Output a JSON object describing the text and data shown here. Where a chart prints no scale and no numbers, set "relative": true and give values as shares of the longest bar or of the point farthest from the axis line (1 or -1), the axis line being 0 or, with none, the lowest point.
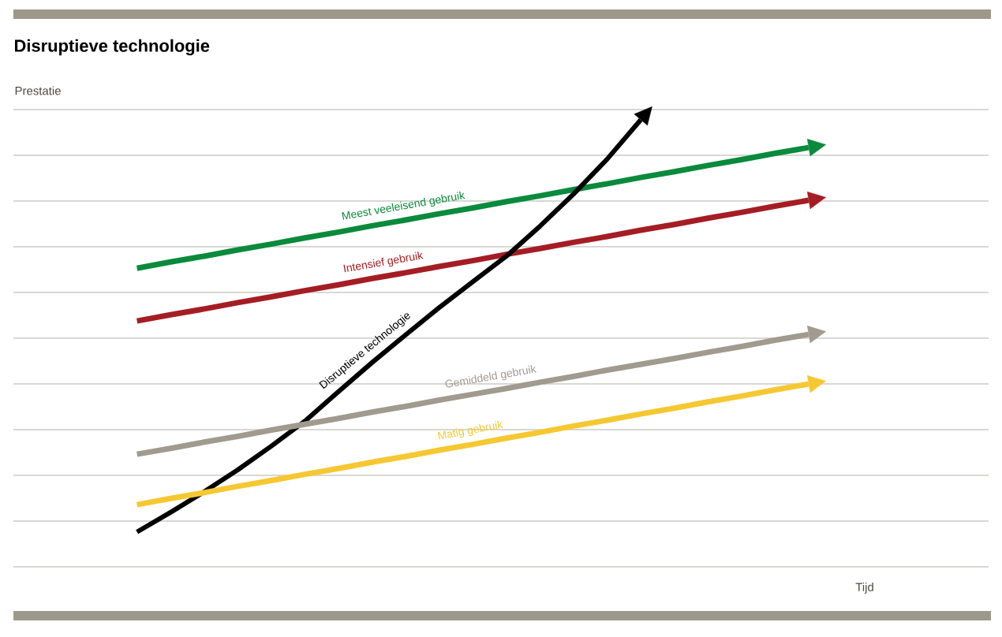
{
  "chart_data": {
    "type": "line",
    "title": "Disruptieve technologie",
    "xlabel": "Tijd",
    "annotations": [
      "Prestatie"
    ],
    "relative": true,
    "grid": "y",
    "line_style": "solid",
    "categories": [
      null,
      null,
      null,
      null,
      null,
      null,
      null,
      null,
      null,
      null,
      null,
      null,
      null,
      null,
      null,
      null,
      null,
      null,
      null,
      null,
      null
    ],
    "series": [
      {
        "name": "Meest veeleisend gebruik",
        "color": "#0a8a3c",
        "values": [
          0.668,
          0.682,
          0.695,
          0.709,
          0.722,
          0.736,
          0.749,
          0.763,
          0.776,
          0.79,
          0.803,
          0.817,
          0.83,
          0.844,
          0.857,
          0.871,
          0.884,
          0.898,
          0.911,
          0.925,
          0.938
        ]
      },
      {
        "name": "Intensief gebruik",
        "color": "#a51d24",
        "values": [
          0.55,
          0.564,
          0.577,
          0.591,
          0.604,
          0.618,
          0.631,
          0.645,
          0.658,
          0.672,
          0.685,
          0.699,
          0.712,
          0.726,
          0.739,
          0.753,
          0.766,
          0.78,
          0.793,
          0.807,
          0.82
        ]
      },
      {
        "name": "Disruptieve technologie",
        "color": "#000000",
        "values": [
          0.078,
          0.122,
          0.168,
          0.217,
          0.27,
          0.326,
          0.392,
          0.457,
          0.519,
          0.58,
          0.638,
          0.695,
          0.762,
          0.834,
          0.912,
          1.0,
          null,
          null,
          null,
          null,
          null
        ]
      },
      {
        "name": "Gemiddeld gebruik",
        "color": "#a09a8f",
        "values": [
          0.252,
          0.265,
          0.279,
          0.292,
          0.306,
          0.319,
          0.332,
          0.346,
          0.359,
          0.373,
          0.386,
          0.399,
          0.413,
          0.426,
          0.44,
          0.453,
          0.466,
          0.48,
          0.493,
          0.507,
          0.52
        ]
      },
      {
        "name": "Matig gebruik",
        "color": "#f5c832",
        "values": [
          0.139,
          0.153,
          0.166,
          0.18,
          0.193,
          0.207,
          0.22,
          0.234,
          0.247,
          0.261,
          0.274,
          0.288,
          0.301,
          0.315,
          0.328,
          0.342,
          0.355,
          0.369,
          0.382,
          0.396,
          0.409
        ]
      }
    ]
  }
}
